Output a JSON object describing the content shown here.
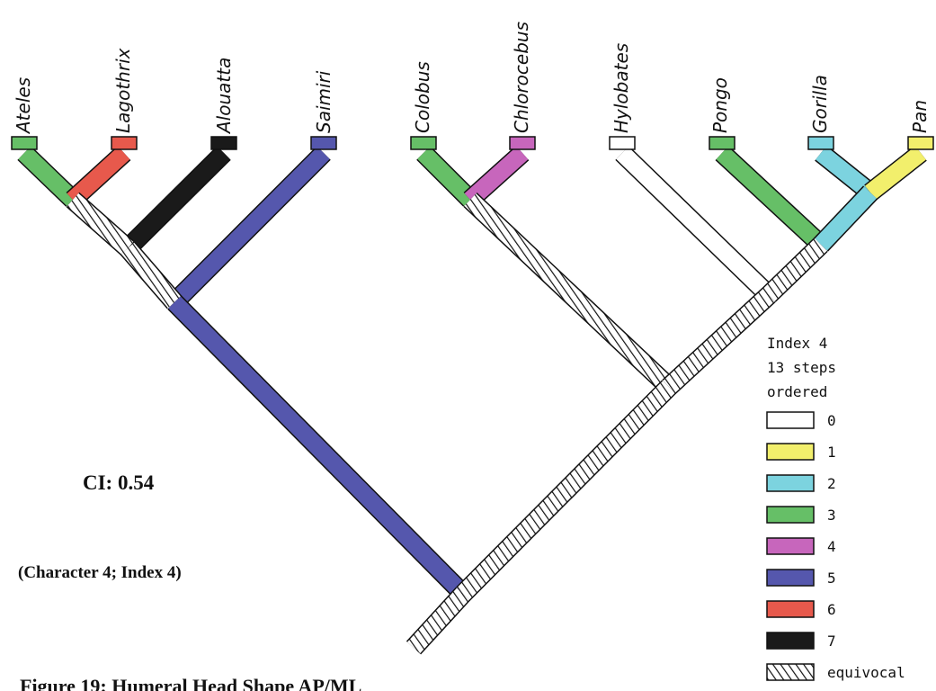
{
  "taxa": [
    {
      "name": "Ateles",
      "state": "3"
    },
    {
      "name": "Lagothrix",
      "state": "6"
    },
    {
      "name": "Alouatta",
      "state": "7"
    },
    {
      "name": "Saimiri",
      "state": "5"
    },
    {
      "name": "Colobus",
      "state": "3"
    },
    {
      "name": "Chlorocebus",
      "state": "4"
    },
    {
      "name": "Hylobates",
      "state": "0"
    },
    {
      "name": "Pongo",
      "state": "3"
    },
    {
      "name": "Gorilla",
      "state": "2"
    },
    {
      "name": "Pan",
      "state": "1"
    }
  ],
  "legend": {
    "title_lines": [
      "Index 4",
      "13 steps",
      "ordered"
    ],
    "items": [
      {
        "label": "0",
        "color": "#ffffff",
        "pattern": "solid"
      },
      {
        "label": "1",
        "color": "#f2ef6c",
        "pattern": "solid"
      },
      {
        "label": "2",
        "color": "#7cd3df",
        "pattern": "solid"
      },
      {
        "label": "3",
        "color": "#66bf67",
        "pattern": "solid"
      },
      {
        "label": "4",
        "color": "#c766bc",
        "pattern": "solid"
      },
      {
        "label": "5",
        "color": "#5557ad",
        "pattern": "solid"
      },
      {
        "label": "6",
        "color": "#e7594c",
        "pattern": "solid"
      },
      {
        "label": "7",
        "color": "#1a1a1a",
        "pattern": "solid"
      },
      {
        "label": "equivocal",
        "color": "#ffffff",
        "pattern": "hatched"
      }
    ]
  },
  "ci_text": "CI: 0.54",
  "character_text": "(Character 4; Index 4)",
  "caption": "Figure 19: Humeral Head Shape AP/ML"
}
